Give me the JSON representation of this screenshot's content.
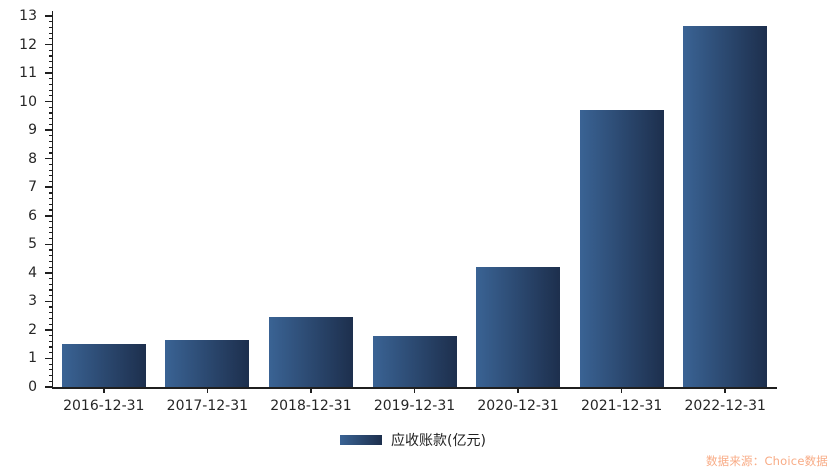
{
  "chart_data": {
    "type": "bar",
    "title": "",
    "categories": [
      "2016-12-31",
      "2017-12-31",
      "2018-12-31",
      "2019-12-31",
      "2020-12-31",
      "2021-12-31",
      "2022-12-31"
    ],
    "series": [
      {
        "name": "应收账款(亿元)",
        "values": [
          1.5,
          1.65,
          2.45,
          1.8,
          4.2,
          9.7,
          12.65
        ]
      }
    ],
    "xlabel": "",
    "ylabel": "",
    "ylim": [
      0,
      13
    ],
    "y_ticks": [
      0,
      1,
      2,
      3,
      4,
      5,
      6,
      7,
      8,
      9,
      10,
      11,
      12,
      13
    ],
    "y_minor_tick_interval": 0.2,
    "grid": false,
    "legend_position": "bottom",
    "bar_gradient_left": "#3a6394",
    "bar_gradient_right": "#1d2f4d",
    "axis_color": "#1f1f1f",
    "label_color": "#262626"
  },
  "legend": {
    "label": "应收账款(亿元)"
  },
  "source": {
    "text": "数据来源：Choice数据",
    "color": "#f8ab85"
  }
}
